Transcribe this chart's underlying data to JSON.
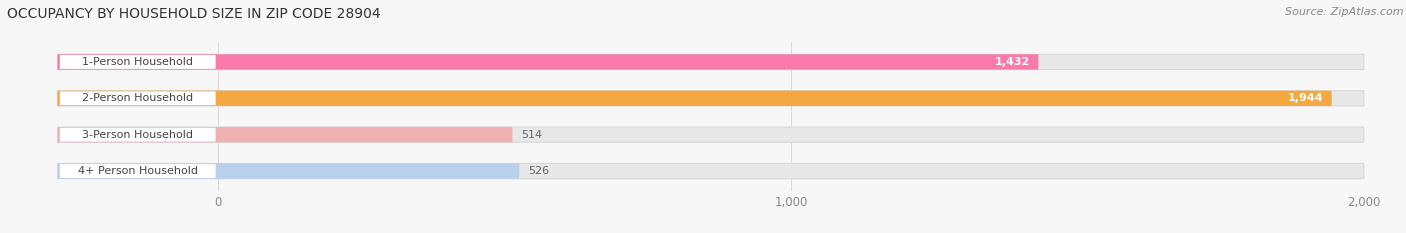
{
  "title": "OCCUPANCY BY HOUSEHOLD SIZE IN ZIP CODE 28904",
  "source": "Source: ZipAtlas.com",
  "categories": [
    "1-Person Household",
    "2-Person Household",
    "3-Person Household",
    "4+ Person Household"
  ],
  "values": [
    1432,
    1944,
    514,
    526
  ],
  "bar_colors": [
    "#f87aaa",
    "#f5a840",
    "#f0b0b0",
    "#b8d0ec"
  ],
  "xlim": [
    0,
    2000
  ],
  "xticks": [
    0,
    1000,
    2000
  ],
  "xtick_labels": [
    "0",
    "1,000",
    "2,000"
  ],
  "bg_color": "#f7f7f7",
  "bar_bg_color": "#e8e8e8",
  "title_fontsize": 10,
  "source_fontsize": 8,
  "label_fontsize": 8,
  "value_fontsize": 8,
  "tick_fontsize": 8.5
}
